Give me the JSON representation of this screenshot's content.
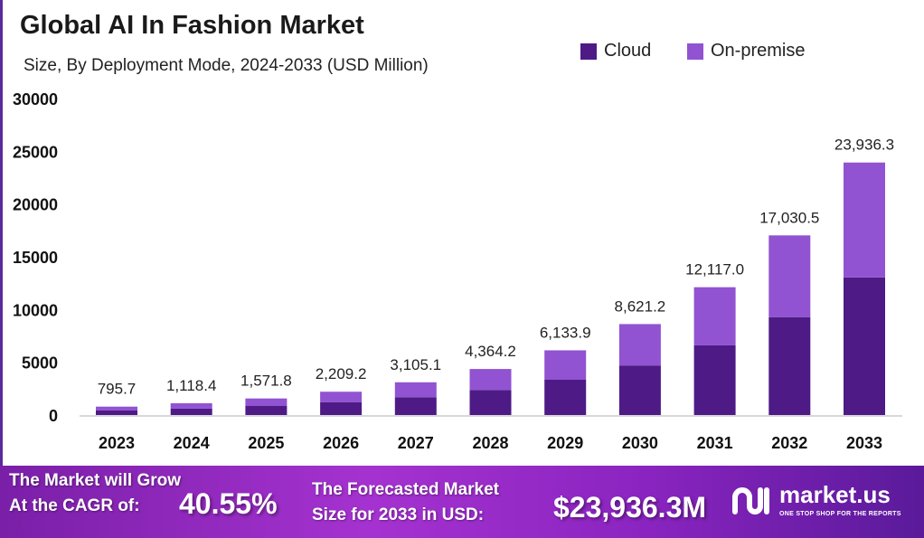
{
  "chart_data": {
    "type": "bar",
    "stacked": true,
    "title": "Global AI In Fashion Market",
    "subtitle": "Size, By Deployment Mode, 2024-2033 (USD Million)",
    "categories": [
      "2023",
      "2024",
      "2025",
      "2026",
      "2027",
      "2028",
      "2029",
      "2030",
      "2031",
      "2032",
      "2033"
    ],
    "totals": [
      795.7,
      1118.4,
      1571.8,
      2209.2,
      3105.1,
      4364.2,
      6133.9,
      8621.2,
      12117.0,
      17030.5,
      23936.3
    ],
    "total_labels": [
      "795.7",
      "1,118.4",
      "1,571.8",
      "2,209.2",
      "3,105.1",
      "4,364.2",
      "6,133.9",
      "8,621.2",
      "12,117.0",
      "17,030.5",
      "23,936.3"
    ],
    "series": [
      {
        "name": "Cloud",
        "color": "#4e1a86",
        "values": [
          434,
          610,
          857,
          1204,
          1692,
          2378,
          3343,
          4699,
          6604,
          9282,
          13045
        ]
      },
      {
        "name": "On-premise",
        "color": "#9153d1",
        "values": [
          361.7,
          508.4,
          714.8,
          1005.2,
          1413.1,
          1986.2,
          2790.9,
          3922.2,
          5513.0,
          7748.5,
          10891.3
        ]
      }
    ],
    "ylim": [
      0,
      30000
    ],
    "yticks": [
      "0",
      "5000",
      "10000",
      "15000",
      "20000",
      "25000",
      "30000"
    ],
    "legend": "top-right"
  },
  "banner": {
    "cagr_text_1": "The Market will Grow",
    "cagr_text_2": "At the CAGR of:",
    "cagr_value": "40.55%",
    "forecast_text_1": "The Forecasted Market",
    "forecast_text_2": "Size for 2033 in USD:",
    "forecast_value": "$23,936.3M",
    "logo_name": "market.us",
    "logo_tagline": "ONE STOP SHOP FOR THE REPORTS"
  }
}
